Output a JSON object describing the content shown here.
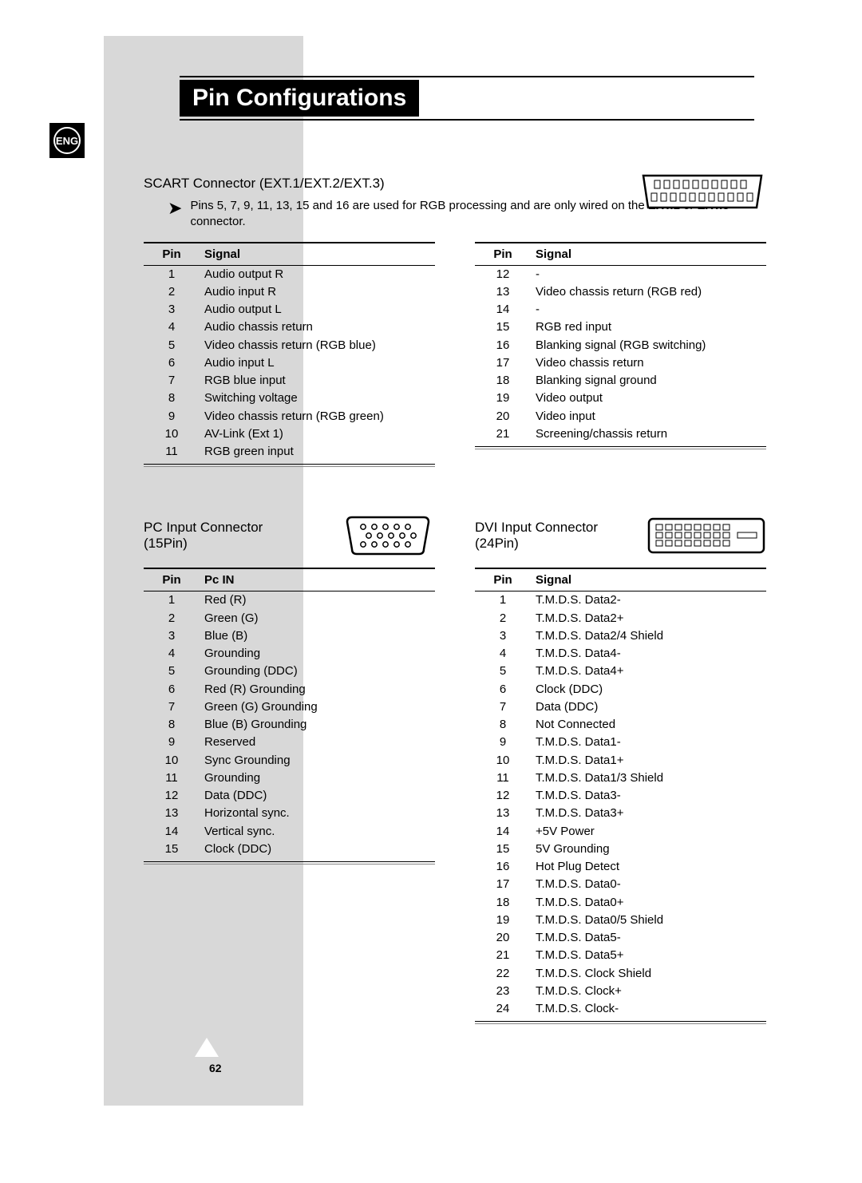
{
  "page": {
    "title": "Pin Configurations",
    "language_badge": "ENG",
    "page_number": "62"
  },
  "scart": {
    "heading": "SCART Connector (EXT.1/EXT.2/EXT.3)",
    "note_prefix": "Pins 5, 7, 9, 11, 13, 15 and 16 are used for RGB processing and are only wired on the ",
    "note_bold": "EXT.1",
    "note_mid": " or ",
    "note_bold2": "EXT.3",
    "note_suffix": " connector.",
    "col1_header_pin": "Pin",
    "col1_header_signal": "Signal",
    "col2_header_pin": "Pin",
    "col2_header_signal": "Signal",
    "left": [
      {
        "pin": "1",
        "signal": "Audio output R"
      },
      {
        "pin": "2",
        "signal": "Audio input R"
      },
      {
        "pin": "3",
        "signal": "Audio output L"
      },
      {
        "pin": "4",
        "signal": "Audio chassis return"
      },
      {
        "pin": "5",
        "signal": "Video chassis return (RGB blue)"
      },
      {
        "pin": "6",
        "signal": "Audio input L"
      },
      {
        "pin": "7",
        "signal": "RGB blue input"
      },
      {
        "pin": "8",
        "signal": "Switching voltage"
      },
      {
        "pin": "9",
        "signal": "Video chassis return (RGB green)"
      },
      {
        "pin": "10",
        "signal": "AV-Link (Ext 1)"
      },
      {
        "pin": "11",
        "signal": "RGB green input"
      }
    ],
    "right": [
      {
        "pin": "12",
        "signal": "-"
      },
      {
        "pin": "13",
        "signal": "Video chassis return (RGB red)"
      },
      {
        "pin": "14",
        "signal": "-"
      },
      {
        "pin": "15",
        "signal": "RGB red input"
      },
      {
        "pin": "16",
        "signal": "Blanking signal (RGB switching)"
      },
      {
        "pin": "17",
        "signal": "Video chassis return"
      },
      {
        "pin": "18",
        "signal": "Blanking signal ground"
      },
      {
        "pin": "19",
        "signal": "Video output"
      },
      {
        "pin": "20",
        "signal": "Video input"
      },
      {
        "pin": "21",
        "signal": "Screening/chassis return"
      }
    ]
  },
  "pc": {
    "heading_l1": "PC Input Connector",
    "heading_l2": "(15Pin)",
    "header_pin": "Pin",
    "header_signal": "Pc IN",
    "rows": [
      {
        "pin": "1",
        "signal": "Red (R)"
      },
      {
        "pin": "2",
        "signal": "Green (G)"
      },
      {
        "pin": "3",
        "signal": "Blue (B)"
      },
      {
        "pin": "4",
        "signal": "Grounding"
      },
      {
        "pin": "5",
        "signal": "Grounding (DDC)"
      },
      {
        "pin": "6",
        "signal": "Red (R) Grounding"
      },
      {
        "pin": "7",
        "signal": "Green (G) Grounding"
      },
      {
        "pin": "8",
        "signal": "Blue (B) Grounding"
      },
      {
        "pin": "9",
        "signal": "Reserved"
      },
      {
        "pin": "10",
        "signal": "Sync Grounding"
      },
      {
        "pin": "11",
        "signal": "Grounding"
      },
      {
        "pin": "12",
        "signal": "Data (DDC)"
      },
      {
        "pin": "13",
        "signal": "Horizontal sync."
      },
      {
        "pin": "14",
        "signal": "Vertical sync."
      },
      {
        "pin": "15",
        "signal": "Clock (DDC)"
      }
    ]
  },
  "dvi": {
    "heading_l1": "DVI Input Connector",
    "heading_l2": "(24Pin)",
    "header_pin": "Pin",
    "header_signal": "Signal",
    "rows": [
      {
        "pin": "1",
        "signal": "T.M.D.S. Data2-"
      },
      {
        "pin": "2",
        "signal": "T.M.D.S. Data2+"
      },
      {
        "pin": "3",
        "signal": "T.M.D.S. Data2/4 Shield"
      },
      {
        "pin": "4",
        "signal": "T.M.D.S. Data4-"
      },
      {
        "pin": "5",
        "signal": "T.M.D.S. Data4+"
      },
      {
        "pin": "6",
        "signal": "Clock (DDC)"
      },
      {
        "pin": "7",
        "signal": "Data (DDC)"
      },
      {
        "pin": "8",
        "signal": "Not Connected"
      },
      {
        "pin": "9",
        "signal": "T.M.D.S. Data1-"
      },
      {
        "pin": "10",
        "signal": "T.M.D.S. Data1+"
      },
      {
        "pin": "11",
        "signal": "T.M.D.S. Data1/3 Shield"
      },
      {
        "pin": "12",
        "signal": "T.M.D.S. Data3-"
      },
      {
        "pin": "13",
        "signal": "T.M.D.S. Data3+"
      },
      {
        "pin": "14",
        "signal": "+5V Power"
      },
      {
        "pin": "15",
        "signal": "5V Grounding"
      },
      {
        "pin": "16",
        "signal": "Hot Plug Detect"
      },
      {
        "pin": "17",
        "signal": "T.M.D.S. Data0-"
      },
      {
        "pin": "18",
        "signal": "T.M.D.S. Data0+"
      },
      {
        "pin": "19",
        "signal": "T.M.D.S. Data0/5 Shield"
      },
      {
        "pin": "20",
        "signal": "T.M.D.S. Data5-"
      },
      {
        "pin": "21",
        "signal": "T.M.D.S. Data5+"
      },
      {
        "pin": "22",
        "signal": "T.M.D.S. Clock Shield"
      },
      {
        "pin": "23",
        "signal": "T.M.D.S. Clock+"
      },
      {
        "pin": "24",
        "signal": "T.M.D.S. Clock-"
      }
    ]
  }
}
